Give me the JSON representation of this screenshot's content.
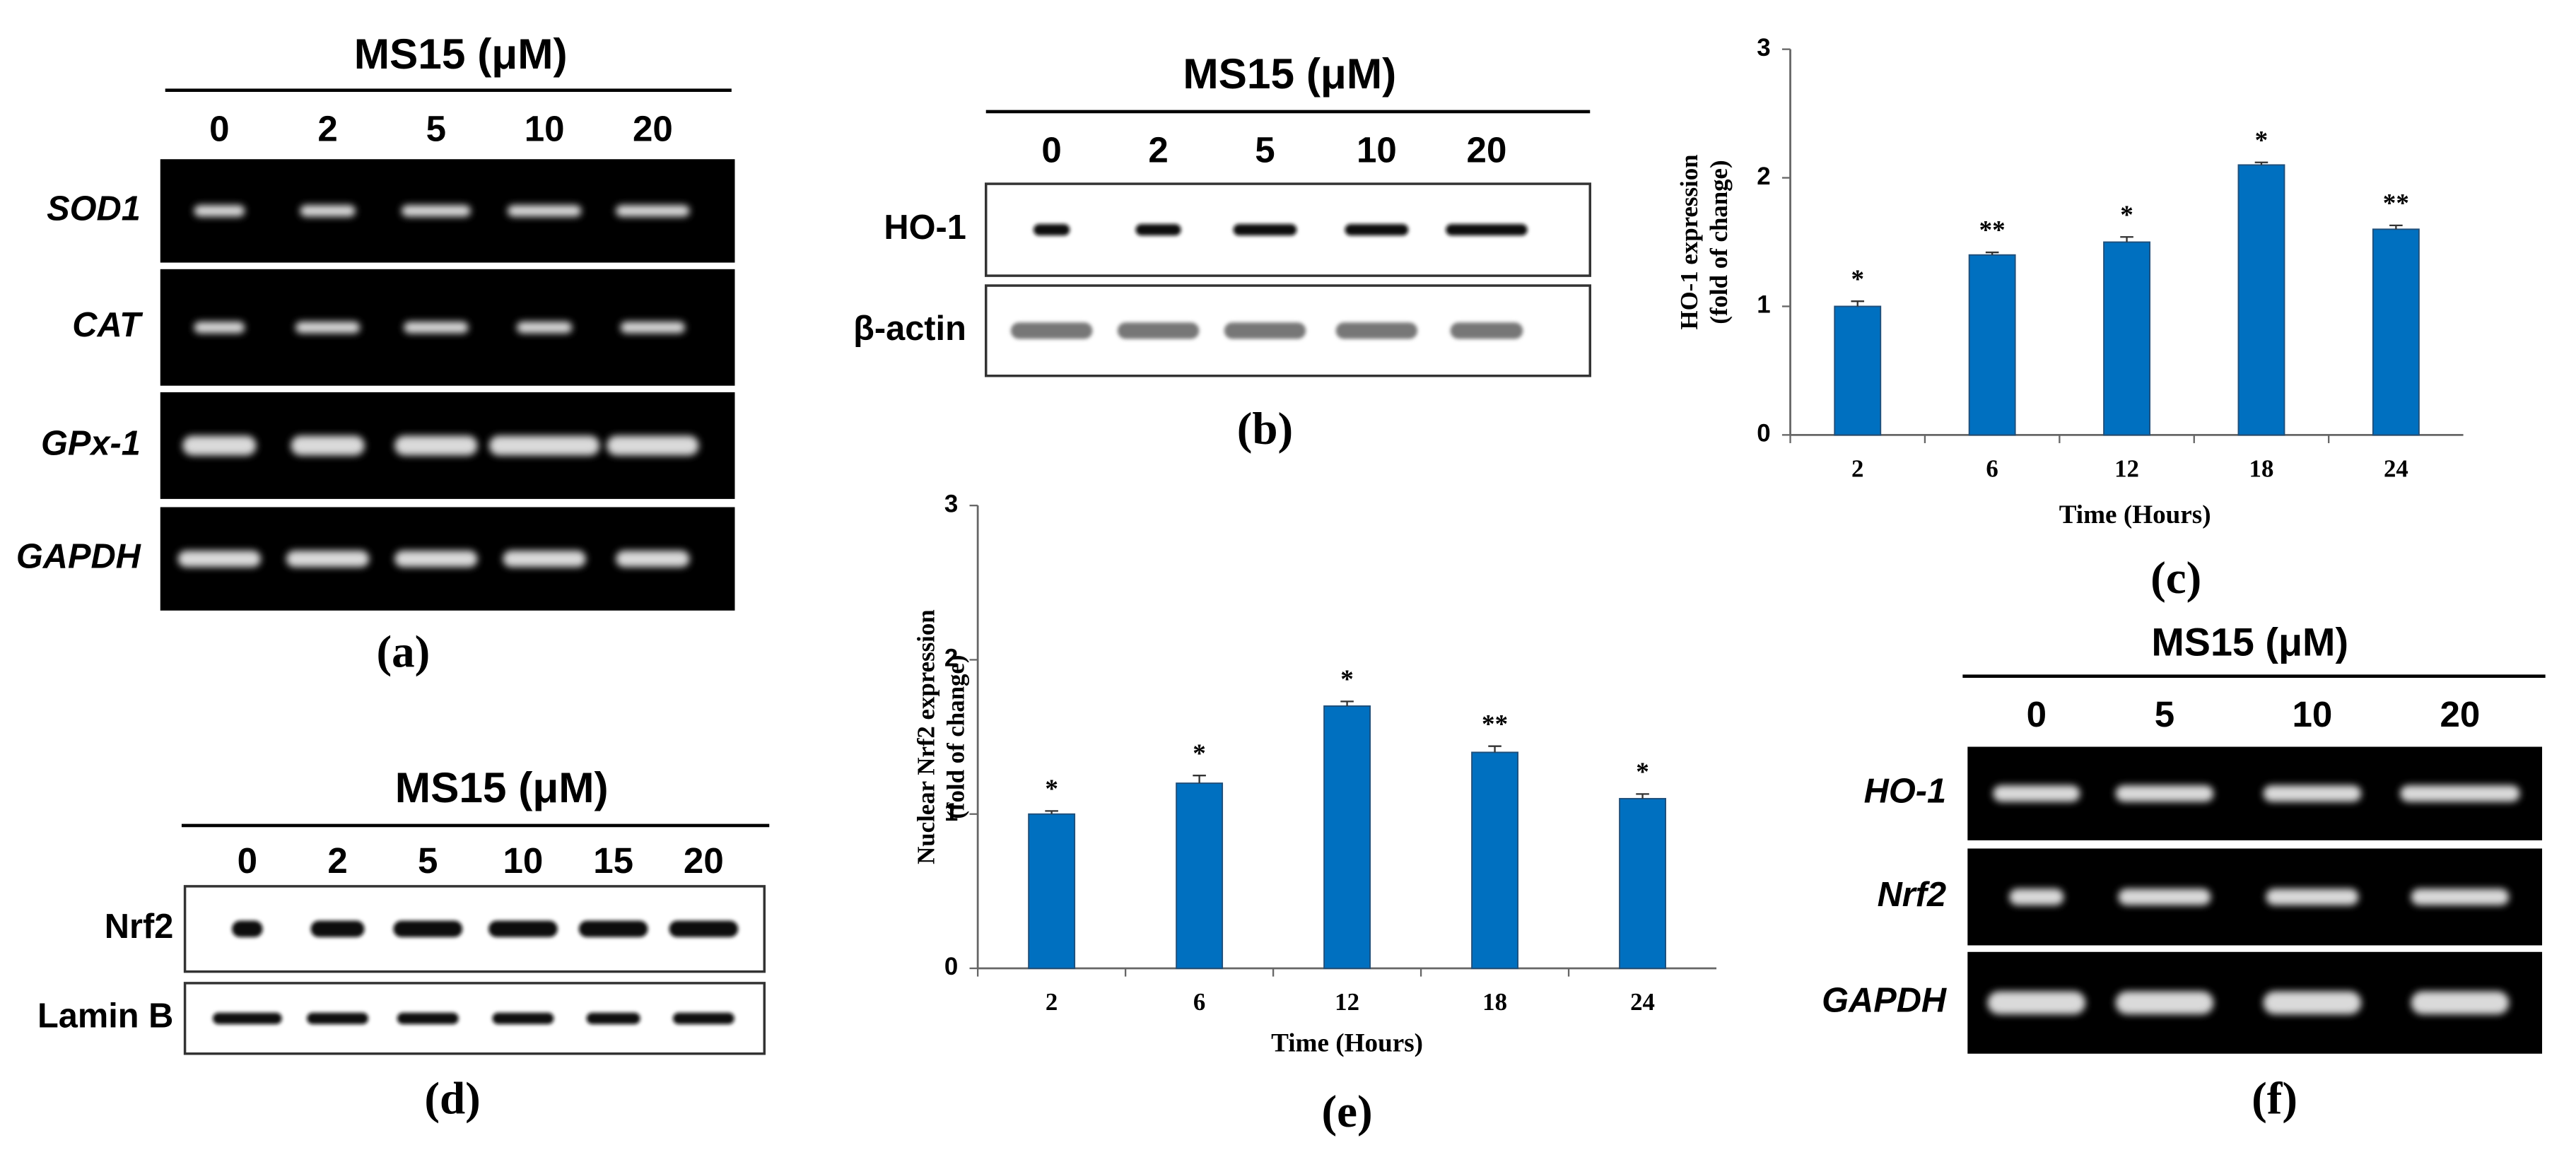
{
  "panels": [
    {
      "title": "MS15 (μM)",
      "lanes": [
        "0",
        "2",
        "5",
        "10",
        "20"
      ],
      "rows": [
        "SOD1",
        "CAT",
        "GPx-1",
        "GAPDH"
      ],
      "caption": "(a)"
    },
    {
      "title": "MS15 (μM)",
      "lanes": [
        "0",
        "2",
        "5",
        "10",
        "20"
      ],
      "rows": [
        "HO-1",
        "β-actin"
      ],
      "caption": "(b)"
    },
    {
      "title": "MS15 (μM)",
      "lanes": [
        "0",
        "2",
        "5",
        "10",
        "15",
        "20"
      ],
      "rows": [
        "Nrf2",
        "Lamin B"
      ],
      "caption": "(d)"
    },
    {
      "title": "MS15 (μM)",
      "lanes": [
        "0",
        "5",
        "10",
        "20"
      ],
      "rows": [
        "HO-1",
        "Nrf2",
        "GAPDH"
      ],
      "caption": "(f)"
    }
  ],
  "chart_data": [
    {
      "type": "bar",
      "categories": [
        "2",
        "6",
        "12",
        "18",
        "24"
      ],
      "values": [
        1.0,
        1.4,
        1.5,
        2.1,
        1.6
      ],
      "errors": [
        0.04,
        0.02,
        0.04,
        0.02,
        0.03
      ],
      "annotations": [
        "*",
        "**",
        "*",
        "*",
        "**"
      ],
      "color": "#0070c0",
      "ylabel": [
        "HO-1 expression",
        "(fold of change)"
      ],
      "xlabel": "Time (Hours)",
      "ylim": [
        0,
        3
      ],
      "yticks": [
        0,
        1,
        2,
        3
      ],
      "caption": "(c)"
    },
    {
      "type": "bar",
      "categories": [
        "2",
        "6",
        "12",
        "18",
        "24"
      ],
      "values": [
        1.0,
        1.2,
        1.7,
        1.4,
        1.1
      ],
      "errors": [
        0.02,
        0.05,
        0.03,
        0.04,
        0.03
      ],
      "annotations": [
        "*",
        "*",
        "*",
        "**",
        "*"
      ],
      "color": "#0070c0",
      "ylabel": [
        "Nuclear Nrf2  expression",
        "(fold of change)"
      ],
      "xlabel": "Time (Hours)",
      "ylim": [
        0,
        3
      ],
      "yticks": [
        0,
        1,
        2,
        3
      ],
      "caption": "(e)"
    }
  ]
}
